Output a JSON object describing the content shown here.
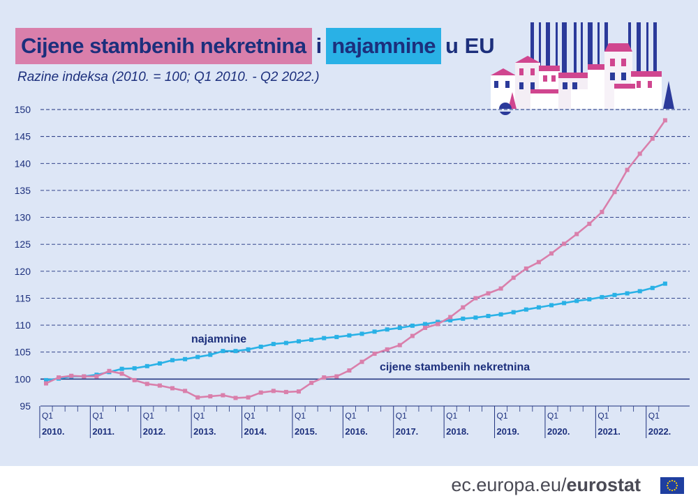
{
  "title": {
    "part1": "Cijene stambenih nekretnina",
    "part2": "i",
    "part3": "najamnine",
    "part4": "u EU"
  },
  "subtitle": "Razine indeksa (2010. = 100; Q1 2010. - Q2 2022.)",
  "footer": {
    "domain": "ec.europa.eu/",
    "brand": "eurostat"
  },
  "colors": {
    "house_prices": "#d97fab",
    "rents": "#29b1e6",
    "navy": "#1c2f7c",
    "background": "#dde6f6"
  },
  "chart_data": {
    "type": "line",
    "ylim": [
      95,
      150
    ],
    "yticks": [
      95,
      100,
      105,
      110,
      115,
      120,
      125,
      130,
      135,
      140,
      145,
      150
    ],
    "quarter_label": "Q1",
    "year_labels": [
      "2010.",
      "2011.",
      "2012.",
      "2013.",
      "2014.",
      "2015.",
      "2016.",
      "2017.",
      "2018.",
      "2019.",
      "2020.",
      "2021.",
      "2022."
    ],
    "grid": "horizontal dashed",
    "series": [
      {
        "name": "cijene stambenih nekretnina",
        "color": "#d97fab",
        "values": [
          99.2,
          100.3,
          100.6,
          100.5,
          100.5,
          101.5,
          101.0,
          99.8,
          99.1,
          98.8,
          98.3,
          97.8,
          96.6,
          96.8,
          97.0,
          96.5,
          96.6,
          97.5,
          97.8,
          97.6,
          97.7,
          99.3,
          100.3,
          100.5,
          101.6,
          103.2,
          104.7,
          105.5,
          106.3,
          108.0,
          109.5,
          110.2,
          111.5,
          113.3,
          115.0,
          115.9,
          116.8,
          118.8,
          120.5,
          121.7,
          123.3,
          125.1,
          126.9,
          128.8,
          131.0,
          134.7,
          138.8,
          141.8,
          144.6,
          148.0
        ]
      },
      {
        "name": "najamnine",
        "color": "#29b1e6",
        "values": [
          99.8,
          100.1,
          100.5,
          100.5,
          100.8,
          101.3,
          101.9,
          102.0,
          102.4,
          102.9,
          103.5,
          103.7,
          104.1,
          104.5,
          105.2,
          105.2,
          105.5,
          106.0,
          106.5,
          106.7,
          107.0,
          107.3,
          107.6,
          107.8,
          108.1,
          108.4,
          108.8,
          109.2,
          109.5,
          109.9,
          110.2,
          110.6,
          110.9,
          111.2,
          111.4,
          111.7,
          112.0,
          112.4,
          112.9,
          113.3,
          113.7,
          114.1,
          114.5,
          114.8,
          115.2,
          115.6,
          115.9,
          116.3,
          116.9,
          117.7
        ]
      }
    ],
    "annotations": [
      {
        "text": "najamnine",
        "series": "najamnine"
      },
      {
        "text": "cijene stambenih nekretnina",
        "series": "cijene stambenih nekretnina"
      }
    ]
  }
}
